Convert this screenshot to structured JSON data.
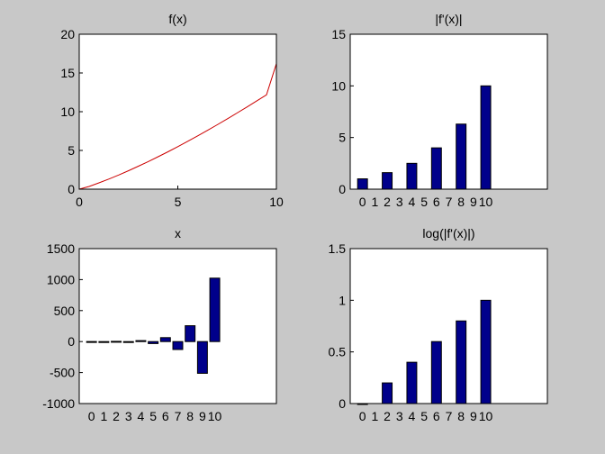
{
  "figure": {
    "background": "#c8c8c8"
  },
  "chart_data": [
    {
      "type": "line",
      "title": "f(x)",
      "color": "#cc0000",
      "xlim": [
        0,
        10
      ],
      "ylim": [
        0,
        20
      ],
      "xticks": [
        0,
        5,
        10
      ],
      "yticks": [
        0,
        5,
        10,
        15,
        20
      ],
      "x": [
        0,
        0.5,
        1,
        1.5,
        2,
        2.5,
        3,
        3.5,
        4,
        4.5,
        5,
        5.5,
        6,
        6.5,
        7,
        7.5,
        8,
        8.5,
        9,
        9.5,
        10
      ],
      "y": [
        0,
        0.35,
        0.81,
        1.3,
        1.83,
        2.38,
        2.96,
        3.56,
        4.19,
        4.83,
        5.49,
        6.17,
        6.87,
        7.58,
        8.31,
        9.06,
        9.82,
        10.59,
        11.38,
        12.18,
        16.2
      ]
    },
    {
      "type": "bar",
      "title": "|f'(x)|",
      "color": "#00008b",
      "xlim": [
        -1,
        15
      ],
      "ylim": [
        0,
        15
      ],
      "yticks": [
        0,
        5,
        10,
        15
      ],
      "tick_labels": [
        "0",
        "1",
        "2",
        "3",
        "4",
        "5",
        "6",
        "7",
        "8",
        "9",
        "10"
      ],
      "x": [
        0,
        2,
        4,
        6,
        8,
        10
      ],
      "values": [
        1.0,
        1.6,
        2.5,
        4.0,
        6.3,
        10.0
      ]
    },
    {
      "type": "bar",
      "title": "x",
      "color": "#00008b",
      "xlim": [
        -1,
        15
      ],
      "ylim": [
        -1000,
        1500
      ],
      "yticks": [
        -1000,
        -500,
        0,
        500,
        1000,
        1500
      ],
      "tick_labels": [
        "0",
        "1",
        "2",
        "3",
        "4",
        "5",
        "6",
        "7",
        "8",
        "9",
        "10"
      ],
      "x": [
        0,
        1,
        2,
        3,
        4,
        5,
        6,
        7,
        8,
        9,
        10
      ],
      "values": [
        1,
        -2,
        4,
        -8,
        16,
        -32,
        64,
        -128,
        256,
        -512,
        1024
      ]
    },
    {
      "type": "bar",
      "title": "log(|f'(x)|)",
      "color": "#00008b",
      "xlim": [
        -1,
        15
      ],
      "ylim": [
        0,
        1.5
      ],
      "yticks": [
        0,
        0.5,
        1,
        1.5
      ],
      "tick_labels": [
        "0",
        "1",
        "2",
        "3",
        "4",
        "5",
        "6",
        "7",
        "8",
        "9",
        "10"
      ],
      "x": [
        0,
        2,
        4,
        6,
        8,
        10
      ],
      "values": [
        0,
        0.2,
        0.4,
        0.6,
        0.8,
        1.0
      ]
    }
  ]
}
